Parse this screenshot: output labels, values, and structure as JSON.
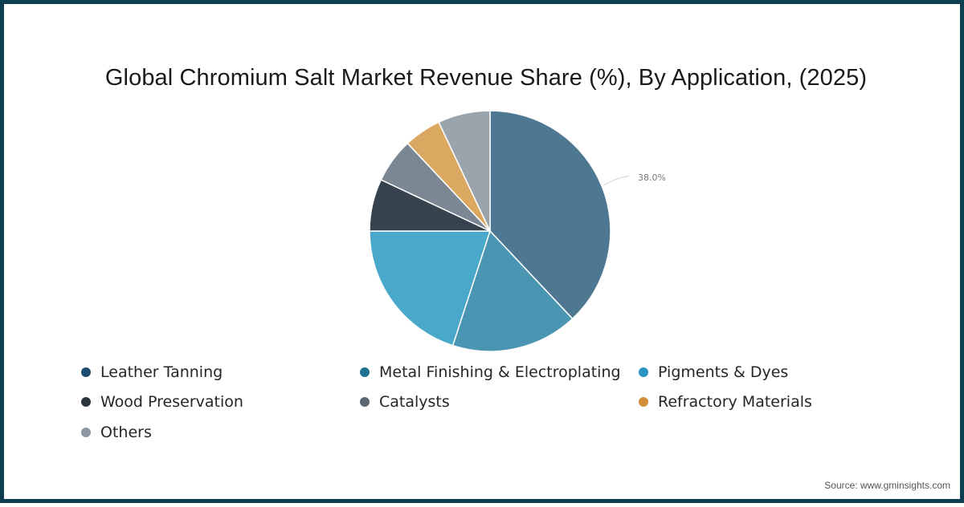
{
  "chart_data": {
    "type": "pie",
    "title": "Global Chromium Salt Market Revenue Share (%), By Application, (2025)",
    "categories": [
      "Leather Tanning",
      "Metal Finishing & Electroplating",
      "Pigments & Dyes",
      "Wood Preservation",
      "Catalysts",
      "Refractory Materials",
      "Others"
    ],
    "values": [
      38.0,
      17.0,
      20.0,
      7.0,
      6.0,
      5.0,
      7.0
    ],
    "slice_colors": [
      "#4e7892",
      "#4a95b1",
      "#4aa9cb",
      "#36424d",
      "#7b8893",
      "#dba862",
      "#9aa4ac"
    ],
    "legend_colors": [
      "#1d4e72",
      "#1f7292",
      "#2a93bf",
      "#2e343c",
      "#5a6670",
      "#d08f38",
      "#8d97a1"
    ],
    "annotations": [
      {
        "slice": "Leather Tanning",
        "text": "38.0%"
      }
    ],
    "legend_position": "bottom"
  },
  "title": "Global Chromium Salt Market Revenue Share (%), By Application, (2025)",
  "legend": {
    "items": [
      {
        "label": "Leather Tanning"
      },
      {
        "label": "Metal Finishing & Electroplating"
      },
      {
        "label": "Pigments & Dyes"
      },
      {
        "label": "Wood Preservation"
      },
      {
        "label": "Catalysts"
      },
      {
        "label": "Refractory Materials"
      },
      {
        "label": "Others"
      }
    ]
  },
  "label_38": "38.0%",
  "source": "Source: www.gminsights.com",
  "colors": {
    "border": "#0e3f4e"
  }
}
